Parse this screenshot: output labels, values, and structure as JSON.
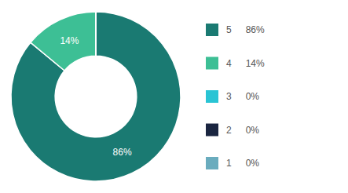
{
  "chart_data": {
    "type": "pie",
    "categories": [
      "5",
      "4",
      "3",
      "2",
      "1"
    ],
    "values": [
      86,
      14,
      0.0001,
      0.0001,
      0.0001
    ],
    "value_labels": [
      "86%",
      "14%",
      "0%",
      "0%",
      "0%"
    ],
    "colors": [
      "#1a7a72",
      "#3dbf95",
      "#29c4d4",
      "#1a2540",
      "#6aacbe"
    ],
    "data_labels": true,
    "legend": "right"
  }
}
